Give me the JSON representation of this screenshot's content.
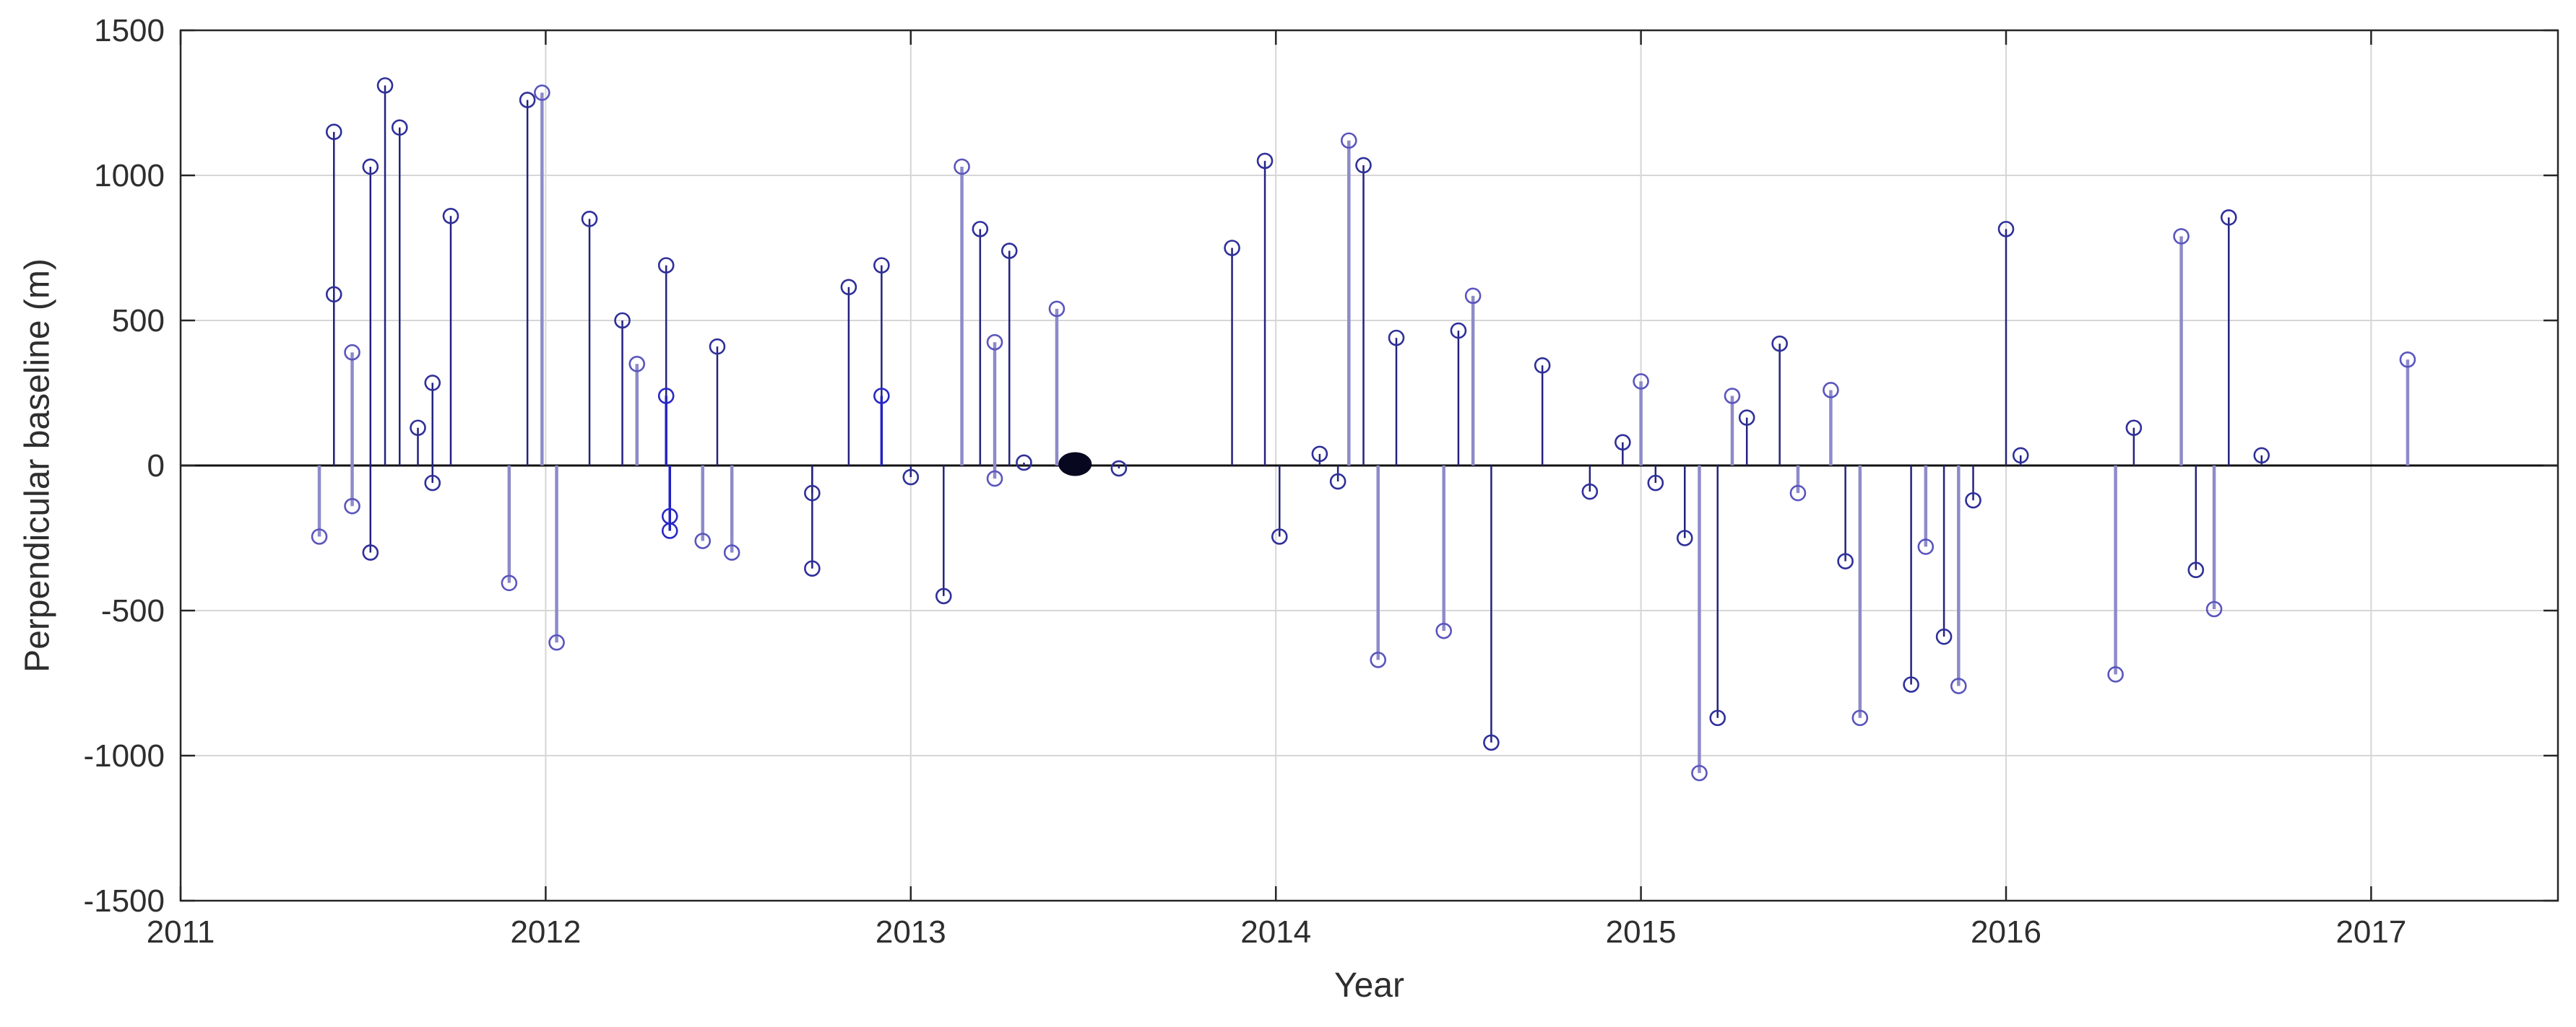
{
  "chart_data": {
    "type": "stem",
    "title": "",
    "xlabel": "Year",
    "ylabel": "Perpendicular baseline (m)",
    "xlim": [
      2011,
      2017.51
    ],
    "ylim": [
      -1500,
      1500
    ],
    "xticks": [
      2011,
      2012,
      2013,
      2014,
      2015,
      2016,
      2017
    ],
    "yticks": [
      -1500,
      -1000,
      -500,
      0,
      500,
      1000,
      1500
    ],
    "grid": true,
    "legend_position": "none",
    "colors": {
      "stem_dark": "#23237e",
      "stem_light": "#8d8bc9",
      "stem_blue": "#2323c3",
      "marker_dark": "#2f2f9a",
      "marker_light": "#5a55bd",
      "marker_blue": "#2828c8",
      "baseline": "#111111",
      "grid": "#d6d6d6",
      "axis": "#262626",
      "text": "#2e2e2e",
      "reference_dot": "#07071f"
    },
    "reference_point": {
      "x": 2013.45,
      "y": 5,
      "style": "filled-black-dot"
    },
    "points": [
      {
        "x": 2011.38,
        "y": -245,
        "tone": "light"
      },
      {
        "x": 2011.42,
        "y": 1150,
        "tone": "dark"
      },
      {
        "x": 2011.42,
        "y": 590,
        "tone": "dark"
      },
      {
        "x": 2011.47,
        "y": 390,
        "tone": "light"
      },
      {
        "x": 2011.47,
        "y": -140,
        "tone": "light"
      },
      {
        "x": 2011.52,
        "y": 1030,
        "tone": "dark"
      },
      {
        "x": 2011.52,
        "y": -300,
        "tone": "dark"
      },
      {
        "x": 2011.56,
        "y": 1310,
        "tone": "dark"
      },
      {
        "x": 2011.6,
        "y": 1165,
        "tone": "dark"
      },
      {
        "x": 2011.65,
        "y": 130,
        "tone": "dark"
      },
      {
        "x": 2011.69,
        "y": 285,
        "tone": "dark"
      },
      {
        "x": 2011.69,
        "y": -60,
        "tone": "dark"
      },
      {
        "x": 2011.74,
        "y": 860,
        "tone": "dark"
      },
      {
        "x": 2011.9,
        "y": -405,
        "tone": "light"
      },
      {
        "x": 2011.95,
        "y": 1260,
        "tone": "dark"
      },
      {
        "x": 2011.99,
        "y": 1285,
        "tone": "light"
      },
      {
        "x": 2012.03,
        "y": -610,
        "tone": "light"
      },
      {
        "x": 2012.12,
        "y": 850,
        "tone": "dark"
      },
      {
        "x": 2012.21,
        "y": 500,
        "tone": "dark"
      },
      {
        "x": 2012.25,
        "y": 350,
        "tone": "light"
      },
      {
        "x": 2012.33,
        "y": 690,
        "tone": "dark"
      },
      {
        "x": 2012.33,
        "y": 240,
        "tone": "blue"
      },
      {
        "x": 2012.34,
        "y": -175,
        "tone": "blue"
      },
      {
        "x": 2012.34,
        "y": -225,
        "tone": "blue"
      },
      {
        "x": 2012.43,
        "y": -260,
        "tone": "light"
      },
      {
        "x": 2012.47,
        "y": 410,
        "tone": "dark"
      },
      {
        "x": 2012.51,
        "y": -300,
        "tone": "light"
      },
      {
        "x": 2012.73,
        "y": -95,
        "tone": "dark"
      },
      {
        "x": 2012.73,
        "y": -355,
        "tone": "dark"
      },
      {
        "x": 2012.83,
        "y": 615,
        "tone": "dark"
      },
      {
        "x": 2012.92,
        "y": 690,
        "tone": "dark"
      },
      {
        "x": 2012.92,
        "y": 240,
        "tone": "blue"
      },
      {
        "x": 2013.0,
        "y": -40,
        "tone": "dark"
      },
      {
        "x": 2013.09,
        "y": -450,
        "tone": "dark"
      },
      {
        "x": 2013.14,
        "y": 1030,
        "tone": "light"
      },
      {
        "x": 2013.19,
        "y": 815,
        "tone": "dark"
      },
      {
        "x": 2013.23,
        "y": 425,
        "tone": "light"
      },
      {
        "x": 2013.23,
        "y": -45,
        "tone": "light"
      },
      {
        "x": 2013.27,
        "y": 740,
        "tone": "dark"
      },
      {
        "x": 2013.31,
        "y": 10,
        "tone": "dark"
      },
      {
        "x": 2013.4,
        "y": 540,
        "tone": "light"
      },
      {
        "x": 2013.57,
        "y": -10,
        "tone": "dark"
      },
      {
        "x": 2013.88,
        "y": 750,
        "tone": "dark"
      },
      {
        "x": 2013.97,
        "y": 1050,
        "tone": "dark"
      },
      {
        "x": 2014.01,
        "y": -245,
        "tone": "dark"
      },
      {
        "x": 2014.12,
        "y": 40,
        "tone": "dark"
      },
      {
        "x": 2014.17,
        "y": -55,
        "tone": "dark"
      },
      {
        "x": 2014.2,
        "y": 1120,
        "tone": "light"
      },
      {
        "x": 2014.24,
        "y": 1035,
        "tone": "dark"
      },
      {
        "x": 2014.28,
        "y": -670,
        "tone": "light"
      },
      {
        "x": 2014.33,
        "y": 440,
        "tone": "dark"
      },
      {
        "x": 2014.46,
        "y": -570,
        "tone": "light"
      },
      {
        "x": 2014.5,
        "y": 465,
        "tone": "dark"
      },
      {
        "x": 2014.54,
        "y": 585,
        "tone": "light"
      },
      {
        "x": 2014.59,
        "y": -955,
        "tone": "dark"
      },
      {
        "x": 2014.73,
        "y": 345,
        "tone": "dark"
      },
      {
        "x": 2014.86,
        "y": -90,
        "tone": "dark"
      },
      {
        "x": 2014.95,
        "y": 80,
        "tone": "dark"
      },
      {
        "x": 2015.0,
        "y": 290,
        "tone": "light"
      },
      {
        "x": 2015.04,
        "y": -60,
        "tone": "dark"
      },
      {
        "x": 2015.12,
        "y": -250,
        "tone": "dark"
      },
      {
        "x": 2015.16,
        "y": -1060,
        "tone": "light"
      },
      {
        "x": 2015.21,
        "y": -870,
        "tone": "dark"
      },
      {
        "x": 2015.25,
        "y": 240,
        "tone": "light"
      },
      {
        "x": 2015.29,
        "y": 165,
        "tone": "dark"
      },
      {
        "x": 2015.38,
        "y": 420,
        "tone": "dark"
      },
      {
        "x": 2015.43,
        "y": -95,
        "tone": "light"
      },
      {
        "x": 2015.52,
        "y": 260,
        "tone": "light"
      },
      {
        "x": 2015.56,
        "y": -330,
        "tone": "dark"
      },
      {
        "x": 2015.6,
        "y": -870,
        "tone": "light"
      },
      {
        "x": 2015.74,
        "y": -755,
        "tone": "dark"
      },
      {
        "x": 2015.78,
        "y": -280,
        "tone": "light"
      },
      {
        "x": 2015.83,
        "y": -590,
        "tone": "dark"
      },
      {
        "x": 2015.87,
        "y": -760,
        "tone": "light"
      },
      {
        "x": 2015.91,
        "y": -120,
        "tone": "dark"
      },
      {
        "x": 2016.0,
        "y": 815,
        "tone": "dark"
      },
      {
        "x": 2016.04,
        "y": 35,
        "tone": "dark"
      },
      {
        "x": 2016.3,
        "y": -720,
        "tone": "light"
      },
      {
        "x": 2016.35,
        "y": 130,
        "tone": "dark"
      },
      {
        "x": 2016.48,
        "y": 790,
        "tone": "light"
      },
      {
        "x": 2016.52,
        "y": -360,
        "tone": "dark"
      },
      {
        "x": 2016.57,
        "y": -495,
        "tone": "light"
      },
      {
        "x": 2016.61,
        "y": 855,
        "tone": "dark"
      },
      {
        "x": 2016.7,
        "y": 35,
        "tone": "dark"
      },
      {
        "x": 2017.1,
        "y": 365,
        "tone": "light"
      }
    ]
  }
}
